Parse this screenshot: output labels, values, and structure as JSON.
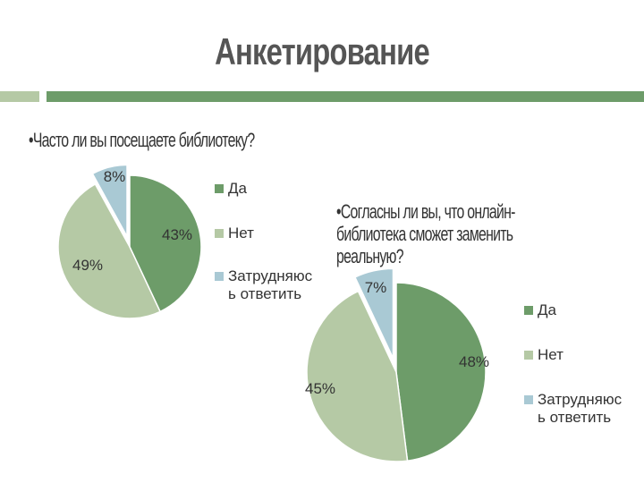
{
  "title": "Анкетирование",
  "question1": "•Часто ли вы посещаете библиотеку?",
  "question2": "•Согласны ли вы, что онлайн-библиотека сможет заменить реальную?",
  "chart_data": [
    {
      "type": "pie",
      "categories": [
        "Да",
        "Нет",
        "Затрудняюсь ответить"
      ],
      "values": [
        43,
        49,
        8
      ],
      "labels": [
        "43%",
        "49%",
        "8%"
      ],
      "legend": [
        [
          "Да"
        ],
        [
          "Нет"
        ],
        [
          "Затрудняюс",
          "ь ответить"
        ]
      ],
      "colors": [
        "#6d9c69",
        "#b5c9a5",
        "#a9c9d4"
      ],
      "legend_placement": "right"
    },
    {
      "type": "pie",
      "categories": [
        "Да",
        "Нет",
        "Затрудняюсь ответить"
      ],
      "values": [
        48,
        45,
        7
      ],
      "labels": [
        "48%",
        "45%",
        "7%"
      ],
      "legend": [
        [
          "Да"
        ],
        [
          "Нет"
        ],
        [
          "Затрудняюс",
          "ь ответить"
        ]
      ],
      "colors": [
        "#6d9c69",
        "#b5c9a5",
        "#a9c9d4"
      ],
      "legend_placement": "right"
    }
  ]
}
